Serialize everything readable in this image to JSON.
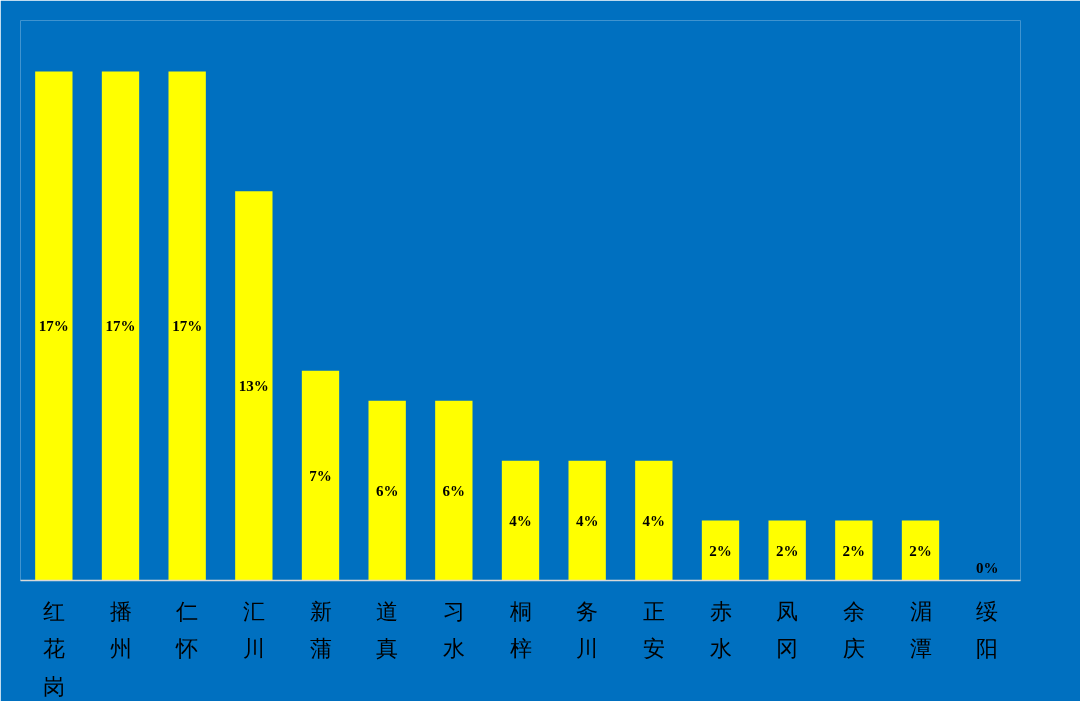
{
  "chart_data": {
    "type": "bar",
    "categories": [
      "红花岗",
      "播州",
      "仁怀",
      "汇川",
      "新蒲",
      "道真",
      "习水",
      "桐梓",
      "务川",
      "正安",
      "赤水",
      "凤冈",
      "余庆",
      "湄潭",
      "绥阳"
    ],
    "values": [
      17,
      17,
      17,
      13,
      7,
      6,
      6,
      4,
      4,
      4,
      2,
      2,
      2,
      2,
      0
    ],
    "value_labels": [
      "17%",
      "17%",
      "17%",
      "13%",
      "7%",
      "6%",
      "6%",
      "4%",
      "4%",
      "4%",
      "2%",
      "2%",
      "2%",
      "2%",
      "0%"
    ],
    "color": "#ffff00"
  }
}
